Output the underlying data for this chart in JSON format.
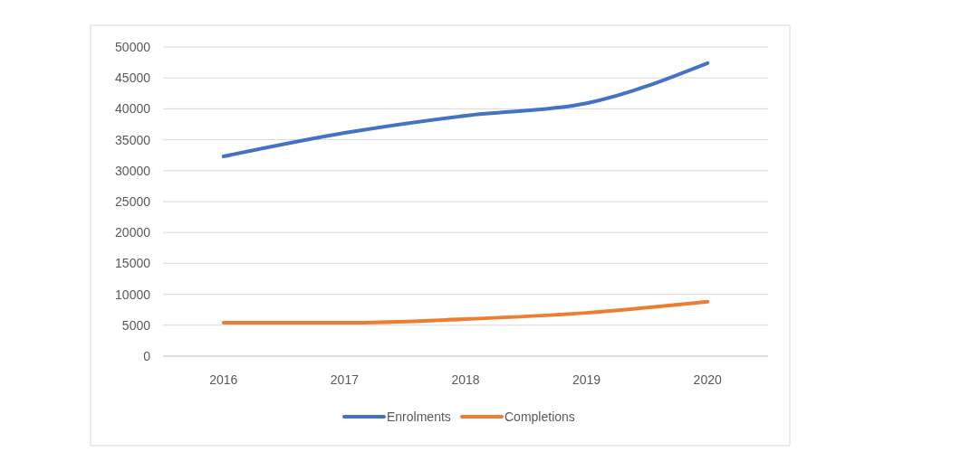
{
  "chart_data": {
    "type": "line",
    "categories": [
      "2016",
      "2017",
      "2018",
      "2019",
      "2020"
    ],
    "series": [
      {
        "name": "Enrolments",
        "color": "#4472c4",
        "values": [
          32300,
          36100,
          38900,
          40900,
          47400
        ]
      },
      {
        "name": "Completions",
        "color": "#ed7d31",
        "values": [
          5400,
          5400,
          6000,
          7000,
          8800
        ]
      }
    ],
    "ylim": [
      0,
      50000
    ],
    "yticks": [
      0,
      5000,
      10000,
      15000,
      20000,
      25000,
      30000,
      35000,
      40000,
      45000,
      50000
    ],
    "grid": "y",
    "legend": "bottom",
    "marker": "none",
    "line_style": "solid"
  }
}
